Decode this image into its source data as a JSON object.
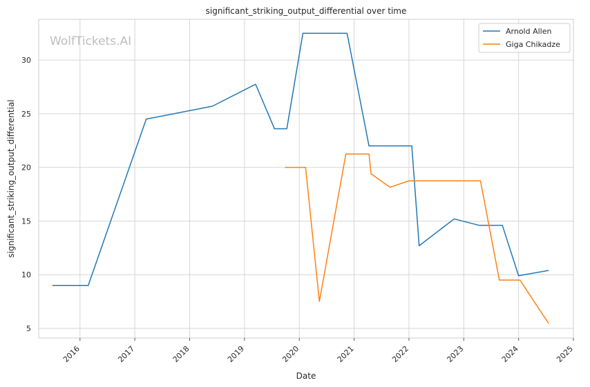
{
  "chart_data": {
    "type": "line",
    "title": "significant_striking_output_differential over time",
    "xlabel": "Date",
    "ylabel": "significant_striking_output_differential",
    "watermark": "WolfTickets.AI",
    "x_ticks": [
      "2016",
      "2017",
      "2018",
      "2019",
      "2020",
      "2021",
      "2022",
      "2023",
      "2024",
      "2025"
    ],
    "y_ticks": [
      5,
      10,
      15,
      20,
      25,
      30
    ],
    "xlim": [
      "2015-04-01",
      "2025-01-01"
    ],
    "ylim": [
      4.1,
      33.8
    ],
    "grid": true,
    "legend_position": "top-right",
    "series": [
      {
        "name": "Arnold Allen",
        "color": "#1f77b4",
        "points": [
          [
            "2015-07-01",
            9.0
          ],
          [
            "2016-02-25",
            9.0
          ],
          [
            "2017-03-18",
            24.5
          ],
          [
            "2018-06-01",
            25.7
          ],
          [
            "2019-03-16",
            27.75
          ],
          [
            "2019-07-20",
            23.6
          ],
          [
            "2019-10-10",
            23.6
          ],
          [
            "2020-01-25",
            32.5
          ],
          [
            "2020-11-15",
            32.5
          ],
          [
            "2021-04-10",
            22.0
          ],
          [
            "2022-01-20",
            22.0
          ],
          [
            "2022-03-10",
            12.7
          ],
          [
            "2022-10-29",
            15.2
          ],
          [
            "2023-04-14",
            14.6
          ],
          [
            "2023-09-15",
            14.6
          ],
          [
            "2024-01-01",
            9.9
          ],
          [
            "2024-07-20",
            10.4
          ]
        ]
      },
      {
        "name": "Giga Chikadze",
        "color": "#ff7f0e",
        "points": [
          [
            "2019-09-28",
            20.0
          ],
          [
            "2020-02-12",
            20.0
          ],
          [
            "2020-05-14",
            7.5
          ],
          [
            "2020-11-07",
            21.25
          ],
          [
            "2021-04-10",
            21.25
          ],
          [
            "2021-04-24",
            19.4
          ],
          [
            "2021-08-28",
            18.15
          ],
          [
            "2022-01-02",
            18.75
          ],
          [
            "2023-04-22",
            18.75
          ],
          [
            "2023-08-26",
            9.5
          ],
          [
            "2024-01-10",
            9.5
          ],
          [
            "2024-07-20",
            5.45
          ]
        ]
      }
    ]
  }
}
